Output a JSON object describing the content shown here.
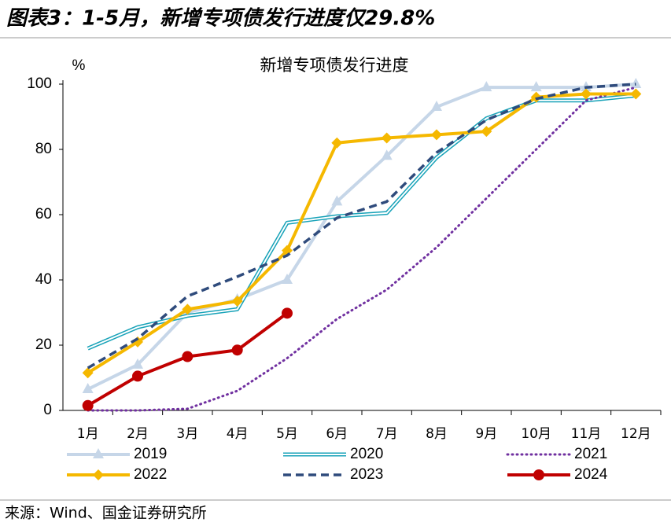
{
  "header": {
    "title": "图表3：1-5月，新增专项债发行进度仅29.8%"
  },
  "chart_data": {
    "type": "line",
    "title": "新增专项债发行进度",
    "y_unit": "%",
    "categories": [
      "1月",
      "2月",
      "3月",
      "4月",
      "5月",
      "6月",
      "7月",
      "8月",
      "9月",
      "10月",
      "11月",
      "12月"
    ],
    "ylim": [
      0,
      100
    ],
    "yticks": [
      0,
      20,
      40,
      60,
      80,
      100
    ],
    "series": [
      {
        "name": "2019",
        "color": "#c6d6e8",
        "style": "solid",
        "marker": "triangle",
        "values": [
          6.5,
          14,
          30,
          34,
          40,
          64,
          78,
          93,
          99,
          99,
          99,
          100
        ]
      },
      {
        "name": "2020",
        "color": "#17a2b8",
        "style": "double",
        "values": [
          19,
          25.5,
          29,
          31,
          57.5,
          59.5,
          60.5,
          77.5,
          89.5,
          95,
          95,
          96.5
        ]
      },
      {
        "name": "2021",
        "color": "#7030a0",
        "style": "dotted",
        "values": [
          0,
          0,
          0.5,
          6,
          16,
          28,
          37,
          50,
          65,
          80,
          95,
          99
        ]
      },
      {
        "name": "2022",
        "color": "#f5b800",
        "style": "solid",
        "marker": "diamond",
        "values": [
          11.5,
          21,
          31,
          33.5,
          49,
          82,
          83.5,
          84.5,
          85.5,
          96,
          97,
          97
        ]
      },
      {
        "name": "2023",
        "color": "#2f4b7c",
        "style": "dashed",
        "values": [
          13,
          22,
          35,
          41,
          47.5,
          59,
          64,
          79,
          89,
          95.5,
          99,
          100
        ]
      },
      {
        "name": "2024",
        "color": "#c00000",
        "style": "solid",
        "marker": "circle",
        "values": [
          1.5,
          10.5,
          16.5,
          18.5,
          29.8,
          null,
          null,
          null,
          null,
          null,
          null,
          null
        ]
      }
    ]
  },
  "source": "来源：Wind、国金证券研究所"
}
